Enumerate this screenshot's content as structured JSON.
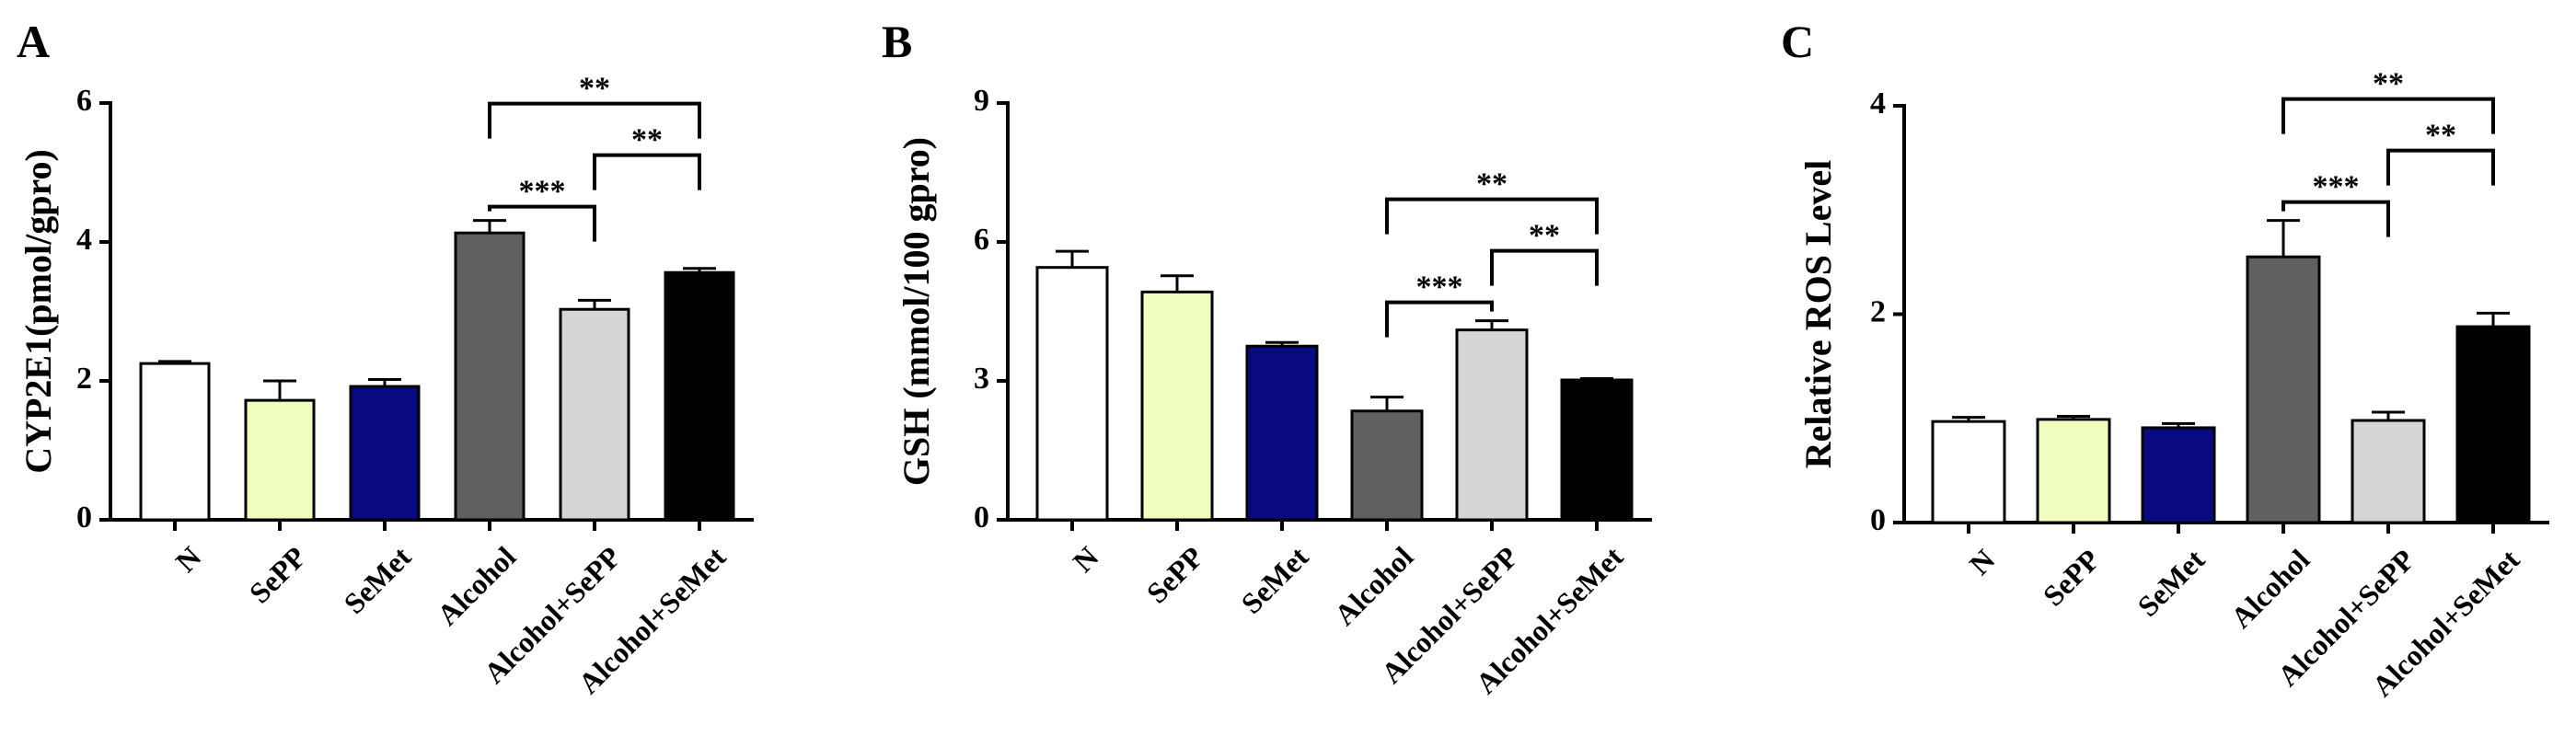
{
  "chart_data": [
    {
      "type": "bar",
      "panel": "A",
      "title": "",
      "xlabel": "",
      "ylabel": "CYP2E1(pmol/gpro)",
      "ylim": [
        0,
        6
      ],
      "yticks": [
        "0",
        "2",
        "4",
        "6"
      ],
      "categories": [
        "N",
        "SePP",
        "SeMet",
        "Alcohol",
        "Alcohol+SePP",
        "Alcohol+SeMet"
      ],
      "values": [
        2.25,
        1.72,
        1.92,
        4.13,
        3.03,
        3.56
      ],
      "errors": [
        0.03,
        0.28,
        0.1,
        0.18,
        0.13,
        0.06
      ],
      "colors": [
        "#ffffff",
        "#f0ffc0",
        "#0a0a80",
        "#606060",
        "#d6d6d6",
        "#000000"
      ],
      "significance": [
        {
          "from": 3,
          "to": 4,
          "label": "***"
        },
        {
          "from": 4,
          "to": 5,
          "label": "**"
        },
        {
          "from": 3,
          "to": 5,
          "label": "**"
        }
      ]
    },
    {
      "type": "bar",
      "panel": "B",
      "title": "",
      "xlabel": "",
      "ylabel": "GSH (mmol/100 gpro)",
      "ylim": [
        0,
        9
      ],
      "yticks": [
        "0",
        "3",
        "6",
        "9"
      ],
      "categories": [
        "N",
        "SePP",
        "SeMet",
        "Alcohol",
        "Alcohol+SePP",
        "Alcohol+SeMet"
      ],
      "values": [
        5.45,
        4.92,
        3.75,
        2.35,
        4.1,
        3.02
      ],
      "errors": [
        0.35,
        0.35,
        0.08,
        0.3,
        0.2,
        0.03
      ],
      "colors": [
        "#ffffff",
        "#f0ffc0",
        "#0a0a80",
        "#606060",
        "#d6d6d6",
        "#000000"
      ],
      "significance": [
        {
          "from": 3,
          "to": 4,
          "label": "***"
        },
        {
          "from": 4,
          "to": 5,
          "label": "**"
        },
        {
          "from": 3,
          "to": 5,
          "label": "**"
        }
      ]
    },
    {
      "type": "bar",
      "panel": "C",
      "title": "",
      "xlabel": "",
      "ylabel": "Relative ROS Level",
      "ylim": [
        0,
        4
      ],
      "yticks": [
        "0",
        "2",
        "4"
      ],
      "categories": [
        "N",
        "SePP",
        "SeMet",
        "Alcohol",
        "Alcohol+SePP",
        "Alcohol+SeMet"
      ],
      "values": [
        0.97,
        0.99,
        0.91,
        2.55,
        0.98,
        1.88
      ],
      "errors": [
        0.04,
        0.03,
        0.04,
        0.35,
        0.08,
        0.13
      ],
      "colors": [
        "#ffffff",
        "#f0ffc0",
        "#0a0a80",
        "#606060",
        "#d6d6d6",
        "#000000"
      ],
      "significance": [
        {
          "from": 3,
          "to": 4,
          "label": "***"
        },
        {
          "from": 4,
          "to": 5,
          "label": "**"
        },
        {
          "from": 3,
          "to": 5,
          "label": "**"
        }
      ]
    }
  ]
}
